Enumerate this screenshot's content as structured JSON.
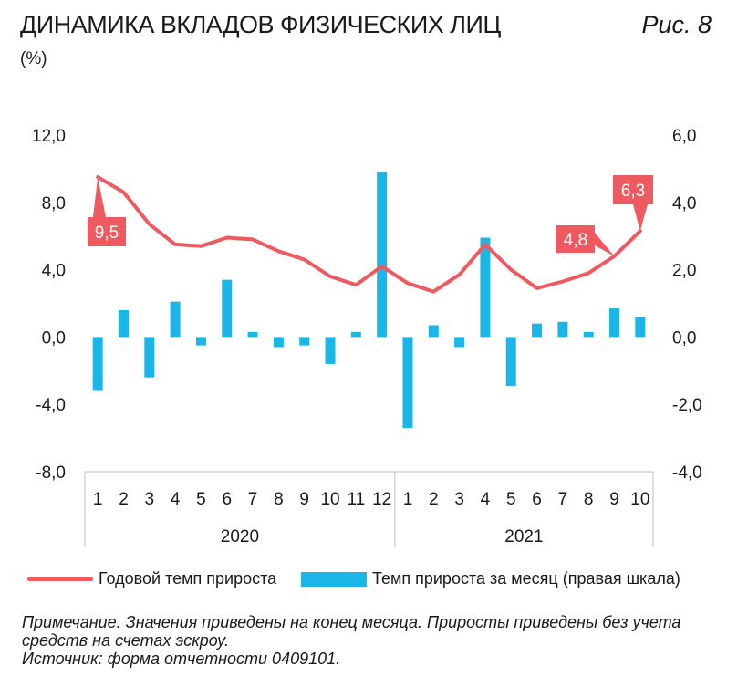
{
  "header": {
    "title": "ДИНАМИКА ВКЛАДОВ ФИЗИЧЕСКИХ ЛИЦ",
    "unit": "(%)",
    "figure_label": "Рис. 8"
  },
  "legend": {
    "line_label": "Годовой темп прироста",
    "bar_label": "Темп прироста за месяц (правая шкала)"
  },
  "notes": [
    "Примечание. Значения приведены на конец месяца. Приросты приведены без учета",
    "средств на счетах эскроу.",
    "Источник: форма отчетности 0409101."
  ],
  "colors": {
    "line": "#ee5a5f",
    "bar": "#1bb6e8",
    "axis": "#bfbfbf"
  },
  "chart_data": {
    "type": "bar+line",
    "categories": [
      "1",
      "2",
      "3",
      "4",
      "5",
      "6",
      "7",
      "8",
      "9",
      "10",
      "11",
      "12",
      "1",
      "2",
      "3",
      "4",
      "5",
      "6",
      "7",
      "8",
      "9",
      "10"
    ],
    "groups": [
      {
        "label": "2020",
        "count": 12
      },
      {
        "label": "2021",
        "count": 10
      }
    ],
    "series": [
      {
        "name": "Годовой темп прироста",
        "type": "line",
        "axis": "left",
        "values": [
          9.5,
          8.6,
          6.7,
          5.5,
          5.4,
          5.9,
          5.8,
          5.1,
          4.6,
          3.6,
          3.1,
          4.2,
          3.2,
          2.7,
          3.7,
          5.5,
          4.0,
          2.9,
          3.3,
          3.8,
          4.8,
          6.3
        ]
      },
      {
        "name": "Темп прироста за месяц (правая шкала)",
        "type": "bar",
        "axis": "right",
        "values": [
          -1.6,
          0.8,
          -1.2,
          1.05,
          -0.25,
          1.7,
          0.15,
          -0.3,
          -0.25,
          -0.8,
          0.15,
          4.9,
          -2.7,
          0.35,
          -0.3,
          2.95,
          -1.45,
          0.4,
          0.45,
          0.15,
          0.85,
          0.6
        ]
      }
    ],
    "y_left": {
      "min": -8,
      "max": 12,
      "ticks": [
        "12,0",
        "8,0",
        "4,0",
        "0,0",
        "-4,0",
        "-8,0"
      ],
      "tick_values": [
        12,
        8,
        4,
        0,
        -4,
        -8
      ]
    },
    "y_right": {
      "min": -4,
      "max": 6,
      "ticks": [
        "6,0",
        "4,0",
        "2,0",
        "0,0",
        "-2,0",
        "-4,0"
      ],
      "tick_values": [
        6,
        4,
        2,
        0,
        -2,
        -4
      ]
    },
    "annotations": [
      {
        "index": 0,
        "label": "9,5"
      },
      {
        "index": 20,
        "label": "4,8"
      },
      {
        "index": 21,
        "label": "6,3"
      }
    ],
    "grid": false,
    "legend_position": "bottom"
  }
}
